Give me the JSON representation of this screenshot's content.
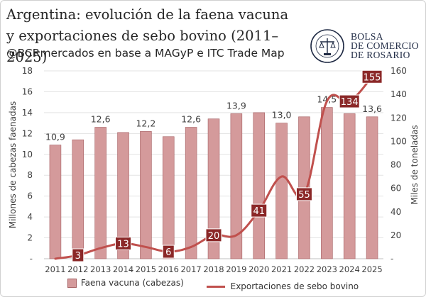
{
  "header": {
    "title": "Argentina: evolución de la faena vacuna y exportaciones de sebo bovino (2011–2025)",
    "subtitle": "@BCRmercados en base a MAGyP e ITC Trade Map"
  },
  "logo": {
    "line1": "BOLSA",
    "line2": "DE COMERCIO",
    "line3": "DE ROSARIO"
  },
  "colors": {
    "bar": "#d49a9b",
    "bar_border": "#a55f62",
    "line": "#c0504d",
    "label_box": "#8b2828"
  },
  "chart_data": {
    "type": "bar+line",
    "categories": [
      "2011",
      "2012",
      "2013",
      "2014",
      "2015",
      "2016",
      "2017",
      "2018",
      "2019",
      "2020",
      "2021",
      "2022",
      "2023",
      "2024",
      "2025"
    ],
    "series": [
      {
        "name": "Faena vacuna (cabezas)",
        "type": "bar",
        "axis": "left",
        "values": [
          10.9,
          11.4,
          12.6,
          12.1,
          12.2,
          11.7,
          12.6,
          13.4,
          13.9,
          14.0,
          13.0,
          13.6,
          14.5,
          13.9,
          13.6
        ]
      },
      {
        "name": "Exportaciones de sebo bovino",
        "type": "line",
        "axis": "right",
        "values": [
          0,
          3,
          9,
          13,
          10,
          6,
          10,
          20,
          20,
          41,
          70,
          55,
          134,
          134,
          155
        ]
      }
    ],
    "bar_labels": {
      "2011": "10,9",
      "2013": "12,6",
      "2015": "12,2",
      "2017": "12,6",
      "2019": "13,9",
      "2021": "13,0",
      "2023": "14,5",
      "2025": "13,6"
    },
    "line_labels": {
      "2012": "3",
      "2014": "13",
      "2016": "6",
      "2018": "20",
      "2020": "41",
      "2022": "55",
      "2024": "134",
      "2025": "155"
    },
    "ylabel_left": "Millones de cabezas faenadas",
    "ylabel_right": "Miles de toneladas",
    "ylim_left": [
      0,
      18
    ],
    "ylim_right": [
      0,
      160
    ],
    "yticks_left": [
      "-",
      "2",
      "4",
      "6",
      "8",
      "10",
      "12",
      "14",
      "16",
      "18"
    ],
    "yticks_right": [
      "-",
      "20",
      "40",
      "60",
      "80",
      "100",
      "120",
      "140",
      "160"
    ],
    "grid": true,
    "legend_position": "bottom"
  },
  "legend": {
    "bar_label": "Faena vacuna (cabezas)",
    "line_label": "Exportaciones de sebo bovino"
  }
}
